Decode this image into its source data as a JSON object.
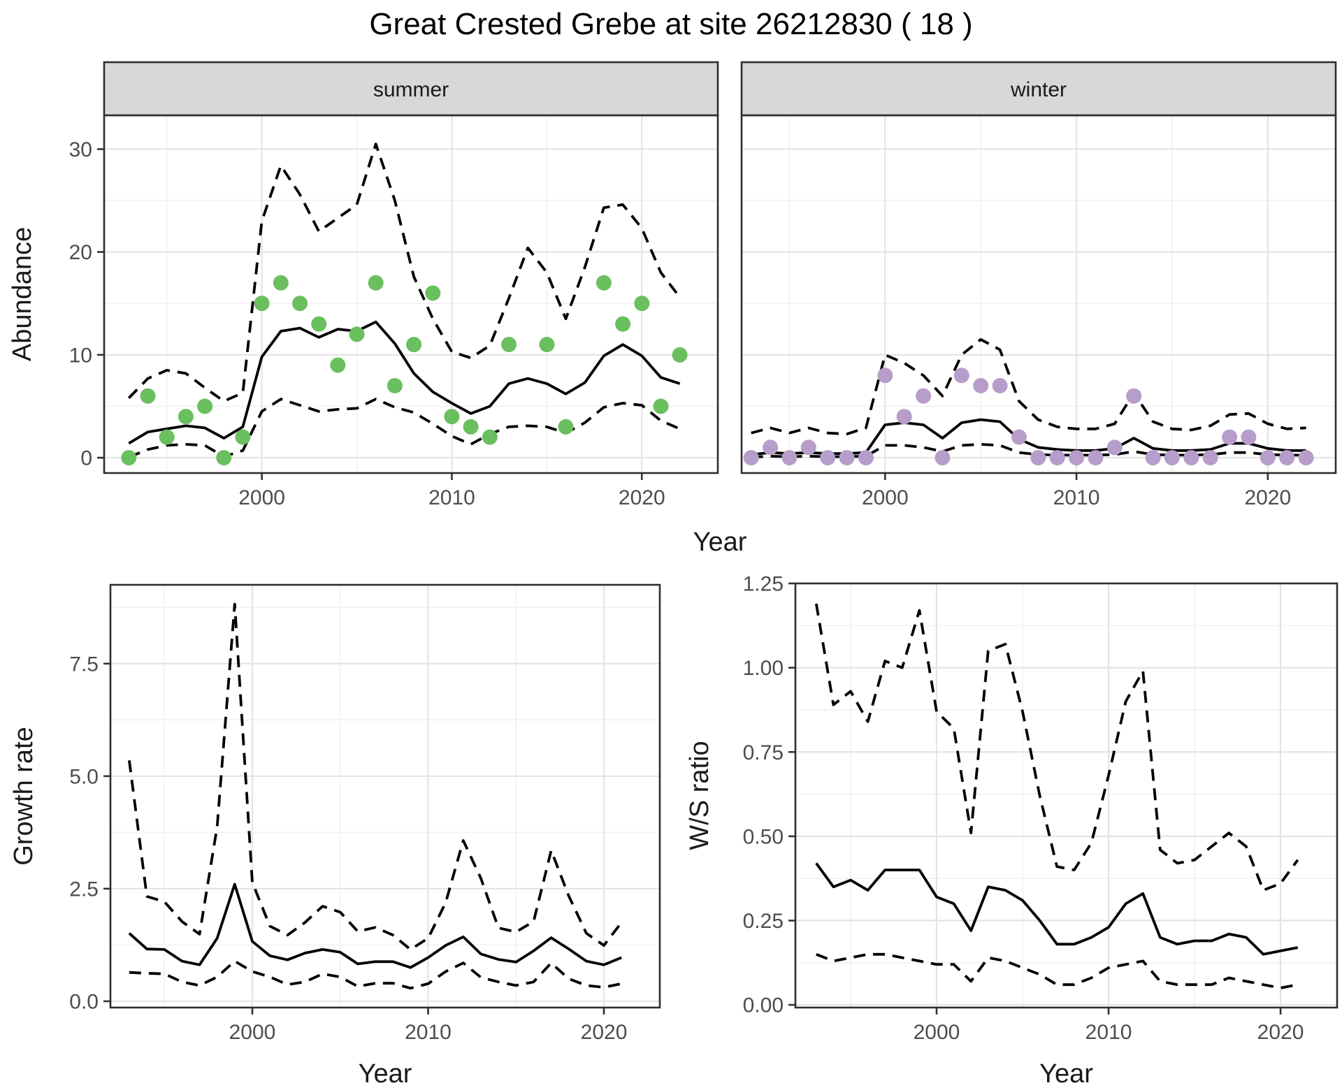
{
  "title": "Great Crested Grebe at site 26212830 ( 18 )",
  "colors": {
    "summer_points": "#6abf5f",
    "winter_points": "#b79dca",
    "line": "#000000",
    "strip_bg": "#d8d8d8",
    "panel_bg": "#ffffff",
    "panel_border": "#2e2e2e",
    "grid_major": "#e4e4e4",
    "grid_minor": "#f1f1f1",
    "tick_text": "#4d4d4d",
    "label_text": "#1a1a1a"
  },
  "chart_data": [
    {
      "id": "abundance-summer",
      "type": "line",
      "facet": "summer",
      "xlabel": "Year",
      "ylabel": "Abundance",
      "x": [
        1993,
        1994,
        1995,
        1996,
        1997,
        1998,
        1999,
        2000,
        2001,
        2002,
        2003,
        2004,
        2005,
        2006,
        2007,
        2008,
        2009,
        2010,
        2011,
        2012,
        2013,
        2014,
        2015,
        2016,
        2017,
        2018,
        2019,
        2020,
        2021,
        2022
      ],
      "series": [
        {
          "name": "observed counts",
          "kind": "scatter",
          "color": "#6abf5f",
          "values": [
            0,
            6,
            2,
            4,
            5,
            0,
            2,
            15,
            17,
            15,
            13,
            9,
            12,
            17,
            7,
            11,
            16,
            4,
            3,
            2,
            11,
            null,
            11,
            3,
            null,
            17,
            13,
            15,
            5,
            10
          ]
        },
        {
          "name": "model fit",
          "kind": "line",
          "dash": "solid",
          "color": "#000000",
          "values": [
            1.4,
            2.5,
            2.8,
            3.1,
            2.9,
            1.9,
            3.0,
            9.8,
            12.3,
            12.6,
            11.7,
            12.5,
            12.3,
            13.2,
            11.1,
            8.2,
            6.4,
            5.3,
            4.3,
            5.0,
            7.2,
            7.7,
            7.2,
            6.2,
            7.3,
            9.9,
            11.0,
            9.9,
            7.8,
            7.2
          ]
        },
        {
          "name": "upper 95% CI",
          "kind": "line",
          "dash": "dashed",
          "color": "#000000",
          "values": [
            5.8,
            7.7,
            8.5,
            8.2,
            6.8,
            5.5,
            6.3,
            23.0,
            28.4,
            25.6,
            22.0,
            23.3,
            24.6,
            30.5,
            25.0,
            17.6,
            13.5,
            10.3,
            9.7,
            10.9,
            15.5,
            20.4,
            18.0,
            13.5,
            18.5,
            24.3,
            24.6,
            22.3,
            18.0,
            15.6
          ]
        },
        {
          "name": "lower 95% CI",
          "kind": "line",
          "dash": "dashed",
          "color": "#000000",
          "values": [
            0.05,
            0.8,
            1.2,
            1.3,
            1.2,
            0.1,
            0.7,
            4.5,
            5.7,
            5.1,
            4.5,
            4.7,
            4.8,
            5.7,
            4.9,
            4.4,
            3.3,
            2.1,
            1.3,
            2.3,
            3.0,
            3.1,
            3.0,
            2.4,
            3.4,
            4.9,
            5.3,
            5.1,
            3.6,
            2.8
          ]
        }
      ],
      "xlim": [
        1991.7,
        2024.0
      ],
      "ylim": [
        -1.49,
        33.29
      ],
      "x_ticks": {
        "values": [
          2000,
          2010,
          2020
        ],
        "labels": [
          "2000",
          "2010",
          "2020"
        ],
        "minor": [
          1995,
          2005,
          2015
        ]
      },
      "y_ticks": {
        "values": [
          0,
          10,
          20,
          30
        ],
        "labels": [
          "0",
          "10",
          "20",
          "30"
        ],
        "minor": [
          5,
          15,
          25
        ]
      },
      "grid": "major+minor",
      "legend": "none"
    },
    {
      "id": "abundance-winter",
      "type": "line",
      "facet": "winter",
      "xlabel": "Year",
      "ylabel": "Abundance",
      "x": [
        1993,
        1994,
        1995,
        1996,
        1997,
        1998,
        1999,
        2000,
        2001,
        2002,
        2003,
        2004,
        2005,
        2006,
        2007,
        2008,
        2009,
        2010,
        2011,
        2012,
        2013,
        2014,
        2015,
        2016,
        2017,
        2018,
        2019,
        2020,
        2021,
        2022
      ],
      "series": [
        {
          "name": "observed counts",
          "kind": "scatter",
          "color": "#b79dca",
          "values": [
            0,
            1,
            0,
            1,
            0,
            0,
            0,
            8,
            4,
            6,
            0,
            8,
            7,
            7,
            2,
            0,
            0,
            0,
            0,
            1,
            6,
            0,
            0,
            0,
            0,
            2,
            2,
            0,
            0,
            0
          ]
        },
        {
          "name": "model fit",
          "kind": "line",
          "dash": "solid",
          "color": "#000000",
          "values": [
            0.3,
            0.5,
            0.4,
            0.5,
            0.4,
            0.4,
            0.5,
            3.2,
            3.4,
            3.2,
            1.9,
            3.4,
            3.7,
            3.5,
            1.8,
            1.0,
            0.8,
            0.7,
            0.7,
            0.9,
            1.9,
            0.9,
            0.7,
            0.7,
            0.8,
            1.4,
            1.4,
            0.9,
            0.7,
            0.7
          ]
        },
        {
          "name": "upper 95% CI",
          "kind": "line",
          "dash": "dashed",
          "color": "#000000",
          "values": [
            2.4,
            2.9,
            2.4,
            2.9,
            2.4,
            2.3,
            2.9,
            10.0,
            9.2,
            8.0,
            6.0,
            10.0,
            11.5,
            10.5,
            5.5,
            3.7,
            3.0,
            2.8,
            2.8,
            3.3,
            6.3,
            3.5,
            2.8,
            2.7,
            3.1,
            4.2,
            4.3,
            3.3,
            2.8,
            2.9
          ]
        },
        {
          "name": "lower 95% CI",
          "kind": "line",
          "dash": "dashed",
          "color": "#000000",
          "values": [
            0.05,
            0.15,
            0.1,
            0.15,
            0.1,
            0.1,
            0.15,
            1.2,
            1.2,
            1.0,
            0.6,
            1.2,
            1.3,
            1.2,
            0.5,
            0.3,
            0.25,
            0.25,
            0.25,
            0.3,
            0.6,
            0.3,
            0.25,
            0.25,
            0.3,
            0.5,
            0.5,
            0.3,
            0.25,
            0.25
          ]
        }
      ],
      "xlim": [
        1992.5,
        2023.55
      ],
      "ylim": [
        -1.49,
        33.29
      ],
      "x_ticks": {
        "values": [
          2000,
          2010,
          2020
        ],
        "labels": [
          "2000",
          "2010",
          "2020"
        ],
        "minor": [
          1995,
          2005,
          2015
        ]
      },
      "y_ticks": {
        "values": [
          0,
          10,
          20,
          30
        ],
        "labels": [
          "0",
          "10",
          "20",
          "30"
        ],
        "minor": [
          5,
          15,
          25
        ]
      },
      "grid": "major+minor",
      "legend": "none"
    },
    {
      "id": "growth-rate",
      "type": "line",
      "facet": null,
      "xlabel": "Year",
      "ylabel": "Growth rate",
      "x": [
        1993,
        1994,
        1995,
        1996,
        1997,
        1998,
        1999,
        2000,
        2001,
        2002,
        2003,
        2004,
        2005,
        2006,
        2007,
        2008,
        2009,
        2010,
        2011,
        2012,
        2013,
        2014,
        2015,
        2016,
        2017,
        2018,
        2019,
        2020,
        2021
      ],
      "series": [
        {
          "name": "growth rate",
          "kind": "line",
          "dash": "solid",
          "color": "#000000",
          "values": [
            1.51,
            1.16,
            1.15,
            0.89,
            0.81,
            1.4,
            2.6,
            1.33,
            1.01,
            0.92,
            1.07,
            1.15,
            1.09,
            0.83,
            0.88,
            0.88,
            0.75,
            0.97,
            1.24,
            1.43,
            1.05,
            0.93,
            0.87,
            1.12,
            1.41,
            1.16,
            0.89,
            0.81,
            0.97
          ]
        },
        {
          "name": "upper 95% CI",
          "kind": "line",
          "dash": "dashed",
          "color": "#000000",
          "values": [
            5.35,
            2.33,
            2.21,
            1.77,
            1.49,
            3.88,
            8.82,
            2.64,
            1.67,
            1.47,
            1.75,
            2.11,
            1.98,
            1.55,
            1.64,
            1.47,
            1.15,
            1.4,
            2.19,
            3.57,
            2.73,
            1.63,
            1.54,
            1.77,
            3.35,
            2.34,
            1.51,
            1.24,
            1.75
          ]
        },
        {
          "name": "lower 95% CI",
          "kind": "line",
          "dash": "dashed",
          "color": "#000000",
          "values": [
            0.64,
            0.62,
            0.61,
            0.43,
            0.35,
            0.54,
            0.89,
            0.66,
            0.54,
            0.37,
            0.43,
            0.61,
            0.54,
            0.33,
            0.4,
            0.4,
            0.29,
            0.39,
            0.66,
            0.85,
            0.53,
            0.43,
            0.35,
            0.43,
            0.85,
            0.5,
            0.35,
            0.31,
            0.39
          ]
        }
      ],
      "xlim": [
        1991.93,
        2023.18
      ],
      "ylim": [
        -0.14,
        9.25
      ],
      "x_ticks": {
        "values": [
          2000,
          2010,
          2020
        ],
        "labels": [
          "2000",
          "2010",
          "2020"
        ],
        "minor": [
          1995,
          2005,
          2015
        ]
      },
      "y_ticks": {
        "values": [
          0,
          2.5,
          5,
          7.5
        ],
        "labels": [
          "0.0",
          "2.5",
          "5.0",
          "7.5"
        ],
        "minor": [
          1.25,
          3.75,
          6.25,
          8.75
        ]
      },
      "grid": "major+minor",
      "legend": "none"
    },
    {
      "id": "ws-ratio",
      "type": "line",
      "facet": null,
      "xlabel": "Year",
      "ylabel": "W/S ratio",
      "x": [
        1993,
        1994,
        1995,
        1996,
        1997,
        1998,
        1999,
        2000,
        2001,
        2002,
        2003,
        2004,
        2005,
        2006,
        2007,
        2008,
        2009,
        2010,
        2011,
        2012,
        2013,
        2014,
        2015,
        2016,
        2017,
        2018,
        2019,
        2020,
        2021
      ],
      "series": [
        {
          "name": "W/S ratio",
          "kind": "line",
          "dash": "solid",
          "color": "#000000",
          "values": [
            0.42,
            0.35,
            0.37,
            0.34,
            0.4,
            0.4,
            0.4,
            0.32,
            0.3,
            0.22,
            0.35,
            0.34,
            0.31,
            0.25,
            0.18,
            0.18,
            0.2,
            0.23,
            0.3,
            0.33,
            0.2,
            0.18,
            0.19,
            0.19,
            0.21,
            0.2,
            0.15,
            0.16,
            0.17
          ]
        },
        {
          "name": "upper 95% CI",
          "kind": "line",
          "dash": "dashed",
          "color": "#000000",
          "values": [
            1.19,
            0.89,
            0.93,
            0.84,
            1.02,
            1.0,
            1.17,
            0.87,
            0.82,
            0.51,
            1.05,
            1.07,
            0.87,
            0.62,
            0.41,
            0.4,
            0.48,
            0.68,
            0.9,
            0.99,
            0.46,
            0.42,
            0.43,
            0.47,
            0.51,
            0.47,
            0.34,
            0.36,
            0.43
          ]
        },
        {
          "name": "lower 95% CI",
          "kind": "line",
          "dash": "dashed",
          "color": "#000000",
          "values": [
            0.15,
            0.13,
            0.14,
            0.15,
            0.15,
            0.14,
            0.13,
            0.12,
            0.12,
            0.07,
            0.14,
            0.13,
            0.11,
            0.09,
            0.06,
            0.06,
            0.08,
            0.11,
            0.12,
            0.13,
            0.07,
            0.06,
            0.06,
            0.06,
            0.08,
            0.07,
            0.06,
            0.05,
            0.06
          ]
        }
      ],
      "xlim": [
        1991.79,
        2023.29
      ],
      "ylim": [
        -0.008,
        1.25
      ],
      "x_ticks": {
        "values": [
          2000,
          2010,
          2020
        ],
        "labels": [
          "2000",
          "2010",
          "2020"
        ],
        "minor": [
          1995,
          2005,
          2015
        ]
      },
      "y_ticks": {
        "values": [
          0,
          0.25,
          0.5,
          0.75,
          1,
          1.25
        ],
        "labels": [
          "0.00",
          "0.25",
          "0.50",
          "0.75",
          "1.00",
          "1.25"
        ],
        "minor": [
          0.125,
          0.375,
          0.625,
          0.875,
          1.125
        ]
      },
      "grid": "major+minor",
      "legend": "none"
    }
  ]
}
